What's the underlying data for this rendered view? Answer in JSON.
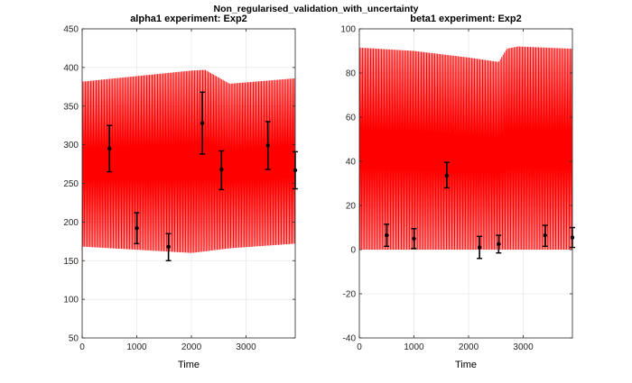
{
  "figure": {
    "suptitle": "Non_regularised_validation_with_uncertainty"
  },
  "chart_data": [
    {
      "type": "line",
      "title": "alpha1 experiment: Exp2",
      "xlabel": "Time",
      "ylabel": "",
      "xlim": [
        0,
        3900
      ],
      "ylim": [
        50,
        450
      ],
      "xticks": [
        0,
        1000,
        2000,
        3000
      ],
      "yticks": [
        50,
        100,
        150,
        200,
        250,
        300,
        350,
        400,
        450
      ],
      "grid": true,
      "series": [
        {
          "style": "oscillating",
          "color": "#ff0000",
          "x_start": 0,
          "x_end": 3900,
          "period": 25,
          "initial_value": 100,
          "upper": [
            [
              50,
              382
            ],
            [
              2000,
              396
            ],
            [
              2250,
              397
            ],
            [
              2700,
              379
            ],
            [
              3900,
              386
            ]
          ],
          "lower": [
            [
              50,
              168
            ],
            [
              2000,
              160
            ],
            [
              2250,
              162
            ],
            [
              2700,
              166
            ],
            [
              3900,
              172
            ]
          ]
        },
        {
          "style": "errorbar",
          "color": "#000000",
          "points": [
            {
              "x": 500,
              "y": 295,
              "lo": 265,
              "hi": 325
            },
            {
              "x": 1000,
              "y": 192,
              "lo": 172,
              "hi": 212
            },
            {
              "x": 1580,
              "y": 168,
              "lo": 150,
              "hi": 185
            },
            {
              "x": 2200,
              "y": 328,
              "lo": 288,
              "hi": 368
            },
            {
              "x": 2550,
              "y": 268,
              "lo": 242,
              "hi": 292
            },
            {
              "x": 3400,
              "y": 299,
              "lo": 268,
              "hi": 330
            },
            {
              "x": 3900,
              "y": 267,
              "lo": 243,
              "hi": 291
            }
          ]
        }
      ]
    },
    {
      "type": "line",
      "title": "beta1 experiment: Exp2",
      "xlabel": "Time",
      "ylabel": "",
      "xlim": [
        0,
        3900
      ],
      "ylim": [
        -40,
        100
      ],
      "xticks": [
        0,
        1000,
        2000,
        3000
      ],
      "yticks": [
        -40,
        -20,
        0,
        20,
        40,
        60,
        80,
        100
      ],
      "grid": true,
      "series": [
        {
          "style": "oscillating",
          "color": "#ff0000",
          "x_start": 0,
          "x_end": 3900,
          "period": 25,
          "initial_value": 0,
          "upper": [
            [
              0,
              91.5
            ],
            [
              1000,
              90
            ],
            [
              2000,
              87
            ],
            [
              2550,
              85
            ],
            [
              2700,
              91
            ],
            [
              2900,
              92
            ],
            [
              3900,
              91
            ]
          ],
          "lower": [
            [
              0,
              0
            ],
            [
              3900,
              0
            ]
          ]
        },
        {
          "style": "errorbar",
          "color": "#000000",
          "points": [
            {
              "x": 500,
              "y": 6.5,
              "lo": 1.5,
              "hi": 11.5
            },
            {
              "x": 1000,
              "y": 5.0,
              "lo": 0.5,
              "hi": 9.5
            },
            {
              "x": 1600,
              "y": 33.5,
              "lo": 28,
              "hi": 39.5
            },
            {
              "x": 2200,
              "y": 1.0,
              "lo": -4,
              "hi": 6
            },
            {
              "x": 2550,
              "y": 2.5,
              "lo": -1.5,
              "hi": 6.5
            },
            {
              "x": 3400,
              "y": 6.5,
              "lo": 1.5,
              "hi": 11
            },
            {
              "x": 3900,
              "y": 5.5,
              "lo": 1,
              "hi": 10
            }
          ]
        }
      ]
    }
  ]
}
